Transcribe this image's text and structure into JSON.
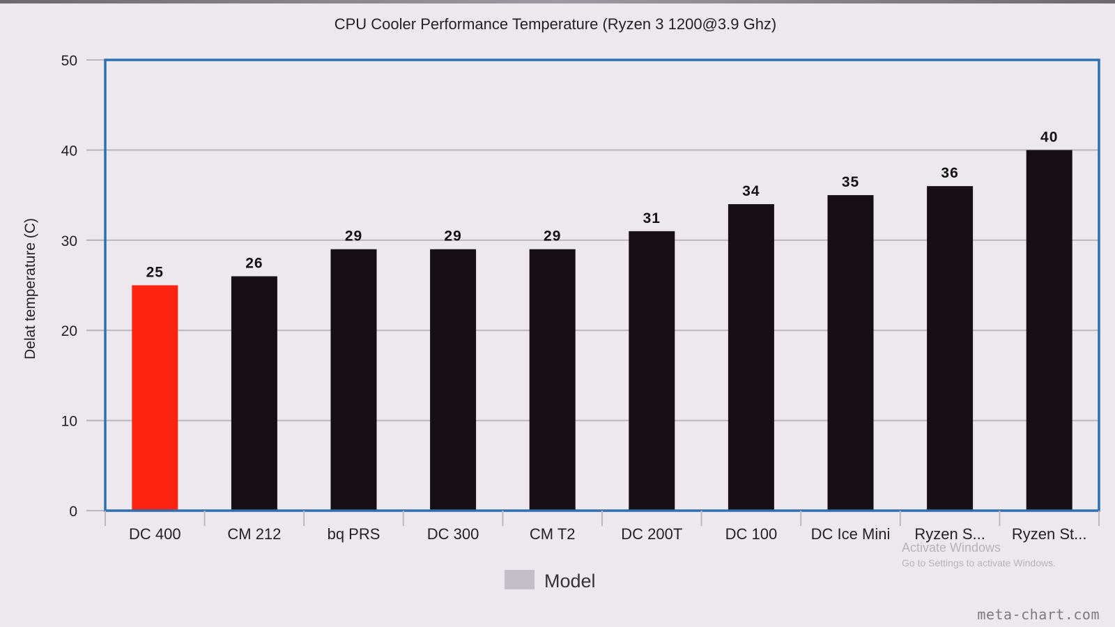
{
  "chart_data": {
    "type": "bar",
    "title": "CPU Cooler Performance Temperature (Ryzen 3 1200@3.9 Ghz)",
    "xlabel": "",
    "ylabel": "Delat temperature (C)",
    "ylim": [
      0,
      50
    ],
    "yticks": [
      0,
      10,
      20,
      30,
      40,
      50
    ],
    "categories": [
      "DC 400",
      "CM 212",
      "bq PRS",
      "DC 300",
      "CM T2",
      "DC 200T",
      "DC 100",
      "DC Ice Mini",
      "Ryzen S...",
      "Ryzen St..."
    ],
    "series": [
      {
        "name": "Model",
        "values": [
          25,
          26,
          29,
          29,
          29,
          31,
          34,
          35,
          36,
          40
        ],
        "data_labels": [
          "25",
          "26",
          "29",
          "29",
          "29",
          "31",
          "34",
          "35",
          "36",
          "40"
        ]
      }
    ],
    "bar_colors": [
      "#fd2412",
      "#161014",
      "#161014",
      "#161014",
      "#161014",
      "#161014",
      "#161014",
      "#161014",
      "#161014",
      "#161014"
    ],
    "legend": {
      "placement": "bottom-center",
      "swatch_color": "#c4bfc6"
    },
    "grid": true,
    "frame_color": "#2e6fb1"
  },
  "overlay": {
    "activation_title": "Activate Windows",
    "activation_subtitle": "Go to Settings to activate Windows.",
    "credit": "meta-chart.com"
  }
}
